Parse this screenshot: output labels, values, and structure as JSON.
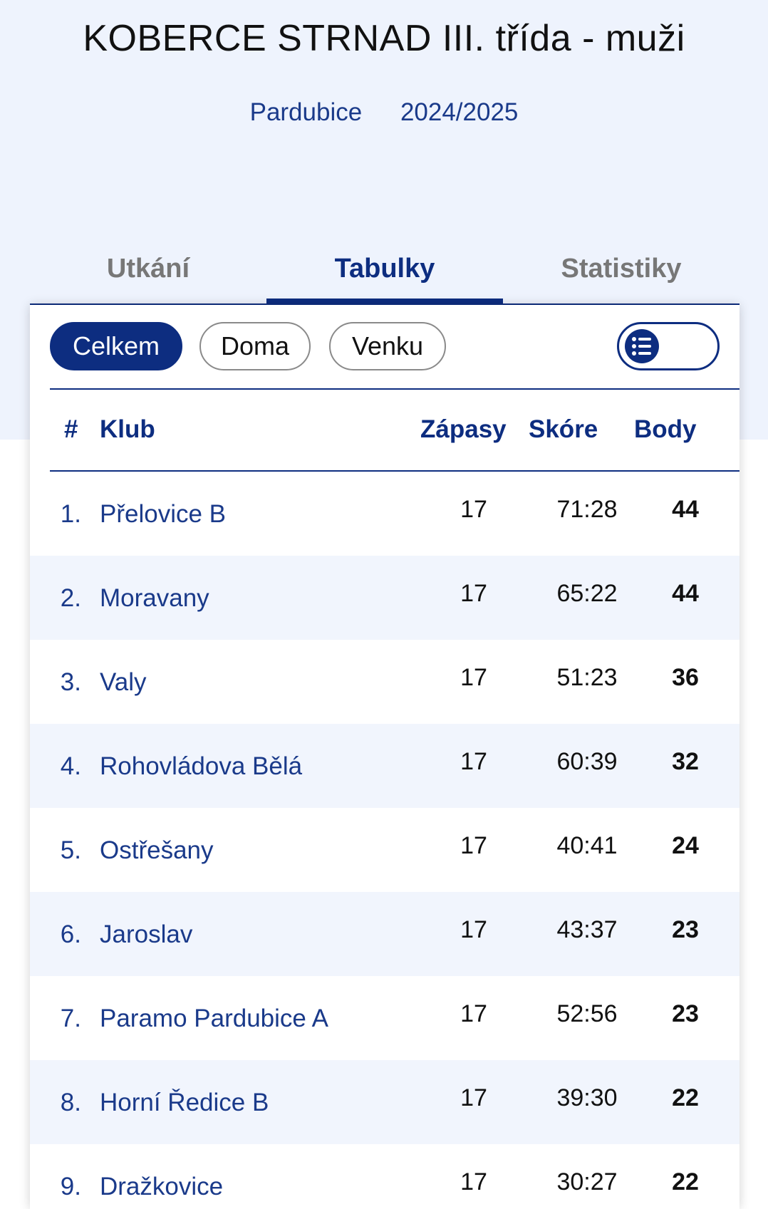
{
  "header": {
    "title": "KOBERCE STRNAD III. třída - muži",
    "region": "Pardubice",
    "season": "2024/2025"
  },
  "tabs": [
    {
      "label": "Utkání",
      "active": false
    },
    {
      "label": "Tabulky",
      "active": true
    },
    {
      "label": "Statistiky",
      "active": false
    }
  ],
  "filters": {
    "total": "Celkem",
    "home": "Doma",
    "away": "Venku",
    "active": "Celkem"
  },
  "table": {
    "columns": {
      "rank": "#",
      "club": "Klub",
      "matches": "Zápasy",
      "score": "Skóre",
      "points": "Body"
    },
    "rows": [
      {
        "rank": "1.",
        "club": "Přelovice B",
        "matches": "17",
        "score": "71:28",
        "points": "44"
      },
      {
        "rank": "2.",
        "club": "Moravany",
        "matches": "17",
        "score": "65:22",
        "points": "44"
      },
      {
        "rank": "3.",
        "club": "Valy",
        "matches": "17",
        "score": "51:23",
        "points": "36"
      },
      {
        "rank": "4.",
        "club": "Rohovládova Bělá",
        "matches": "17",
        "score": "60:39",
        "points": "32"
      },
      {
        "rank": "5.",
        "club": "Ostřešany",
        "matches": "17",
        "score": "40:41",
        "points": "24"
      },
      {
        "rank": "6.",
        "club": "Jaroslav",
        "matches": "17",
        "score": "43:37",
        "points": "23"
      },
      {
        "rank": "7.",
        "club": "Paramo Pardubice A",
        "matches": "17",
        "score": "52:56",
        "points": "23"
      },
      {
        "rank": "8.",
        "club": "Horní Ředice B",
        "matches": "17",
        "score": "39:30",
        "points": "22"
      },
      {
        "rank": "9.",
        "club": "Dražkovice",
        "matches": "17",
        "score": "30:27",
        "points": "22"
      }
    ]
  },
  "colors": {
    "primary": "#0d2d80",
    "band": "#eef3fd",
    "row_alt": "#f1f5fd"
  },
  "icons": {
    "toggle": "list-view-icon"
  }
}
